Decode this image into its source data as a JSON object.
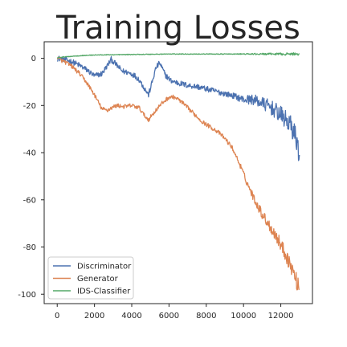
{
  "chart_data": {
    "type": "line",
    "title": "Training Losses",
    "xlabel": "",
    "ylabel": "",
    "xlim": [
      -700,
      13700
    ],
    "ylim": [
      -104,
      7
    ],
    "xticks": [
      0,
      2000,
      4000,
      6000,
      8000,
      10000,
      12000
    ],
    "yticks": [
      0,
      -20,
      -40,
      -60,
      -80,
      -100
    ],
    "grid": false,
    "legend_position": "bottom-left",
    "series": [
      {
        "name": "Discriminator",
        "color": "#4c72b0",
        "noise": 1.2,
        "x": [
          0,
          400,
          800,
          1200,
          1600,
          2000,
          2400,
          2700,
          2900,
          3200,
          3500,
          3800,
          4100,
          4400,
          4700,
          4900,
          5100,
          5300,
          5500,
          5800,
          6100,
          6500,
          7000,
          7500,
          8000,
          8500,
          9000,
          9500,
          10000,
          10500,
          11000,
          11500,
          12000,
          12500,
          12800,
          13000
        ],
        "y": [
          0,
          -0.5,
          -1.5,
          -3,
          -5,
          -7.5,
          -6.5,
          -3,
          -0.5,
          -3,
          -5.5,
          -6,
          -7,
          -9,
          -13,
          -15.5,
          -10,
          -4,
          -2,
          -7,
          -9.5,
          -10.5,
          -11.5,
          -12,
          -13,
          -14,
          -15,
          -16,
          -17.5,
          -17.5,
          -19,
          -21,
          -24,
          -28,
          -33,
          -41
        ]
      },
      {
        "name": "Generator",
        "color": "#dd8452",
        "noise": 0.9,
        "x": [
          0,
          400,
          800,
          1200,
          1600,
          2000,
          2400,
          2700,
          2900,
          3200,
          3600,
          4000,
          4400,
          4700,
          4900,
          5100,
          5400,
          5700,
          6000,
          6300,
          6600,
          7000,
          7400,
          7800,
          8200,
          8600,
          9000,
          9400,
          9800,
          10200,
          10600,
          11000,
          11400,
          11800,
          12200,
          12600,
          13000
        ],
        "y": [
          0,
          -1.5,
          -3.5,
          -6.5,
          -10.5,
          -15.5,
          -21.5,
          -22,
          -21,
          -20,
          -20.5,
          -20,
          -21,
          -24.5,
          -26,
          -24,
          -21,
          -18.5,
          -16.5,
          -16.5,
          -18,
          -21,
          -24,
          -27,
          -29,
          -31,
          -34,
          -38,
          -45,
          -53,
          -60,
          -66,
          -71,
          -76,
          -82,
          -89,
          -98
        ]
      },
      {
        "name": "IDS-Classifier",
        "color": "#55a868",
        "noise": 0.15,
        "x": [
          0,
          1000,
          2000,
          3000,
          4000,
          5000,
          6000,
          7000,
          8000,
          9000,
          10000,
          11000,
          12000,
          13000
        ],
        "y": [
          0.3,
          1.0,
          1.4,
          1.5,
          1.6,
          1.7,
          1.8,
          1.8,
          1.8,
          1.8,
          1.8,
          1.8,
          1.8,
          1.8
        ]
      }
    ]
  }
}
